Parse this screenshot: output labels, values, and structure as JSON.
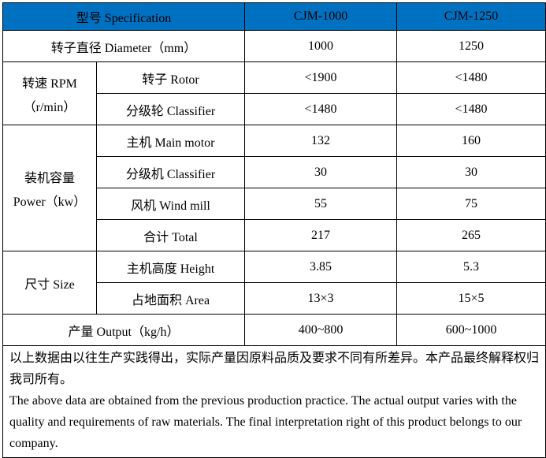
{
  "header": {
    "spec": "型号 Specification",
    "model1": "CJM-1000",
    "model2": "CJM-1250"
  },
  "header_color": "#0070C0",
  "rows": {
    "diameter": {
      "label": "转子直径  Diameter（mm）",
      "v1": "1000",
      "v2": "1250"
    },
    "rpm": {
      "group": "转速 RPM",
      "group_unit": "（r/min）",
      "rotor": {
        "label": "转子 Rotor",
        "v1": "<1900",
        "v2": "<1480"
      },
      "classifier": {
        "label": "分级轮  Classifier",
        "v1": "<1480",
        "v2": "<1480"
      }
    },
    "power": {
      "group": "装机容量",
      "group_unit": "Power（kw）",
      "main_motor": {
        "label": "主机 Main motor",
        "v1": "132",
        "v2": "160"
      },
      "classifier": {
        "label": "分级机 Classifier",
        "v1": "30",
        "v2": "30"
      },
      "wind_mill": {
        "label": "风机 Wind mill",
        "v1": "55",
        "v2": "75"
      },
      "total": {
        "label": "合计 Total",
        "v1": "217",
        "v2": "265"
      }
    },
    "size": {
      "group": "尺寸 Size",
      "height": {
        "label": "主机高度 Height",
        "v1": "3.85",
        "v2": "5.3"
      },
      "area": {
        "label": "占地面积 Area",
        "v1": "13×3",
        "v2": "15×5"
      }
    },
    "output": {
      "label": "产量 Output（kg/h）",
      "v1": "400~800",
      "v2": "600~1000"
    }
  },
  "notes": {
    "zh": "以上数据由以往生产实践得出，实际产量因原料品质及要求不同有所差异。本产品最终解释权归我司所有。",
    "en": "The above data are obtained from the previous production practice. The actual output varies with the quality and requirements of raw materials. The final interpretation right of this product belongs to our company."
  }
}
